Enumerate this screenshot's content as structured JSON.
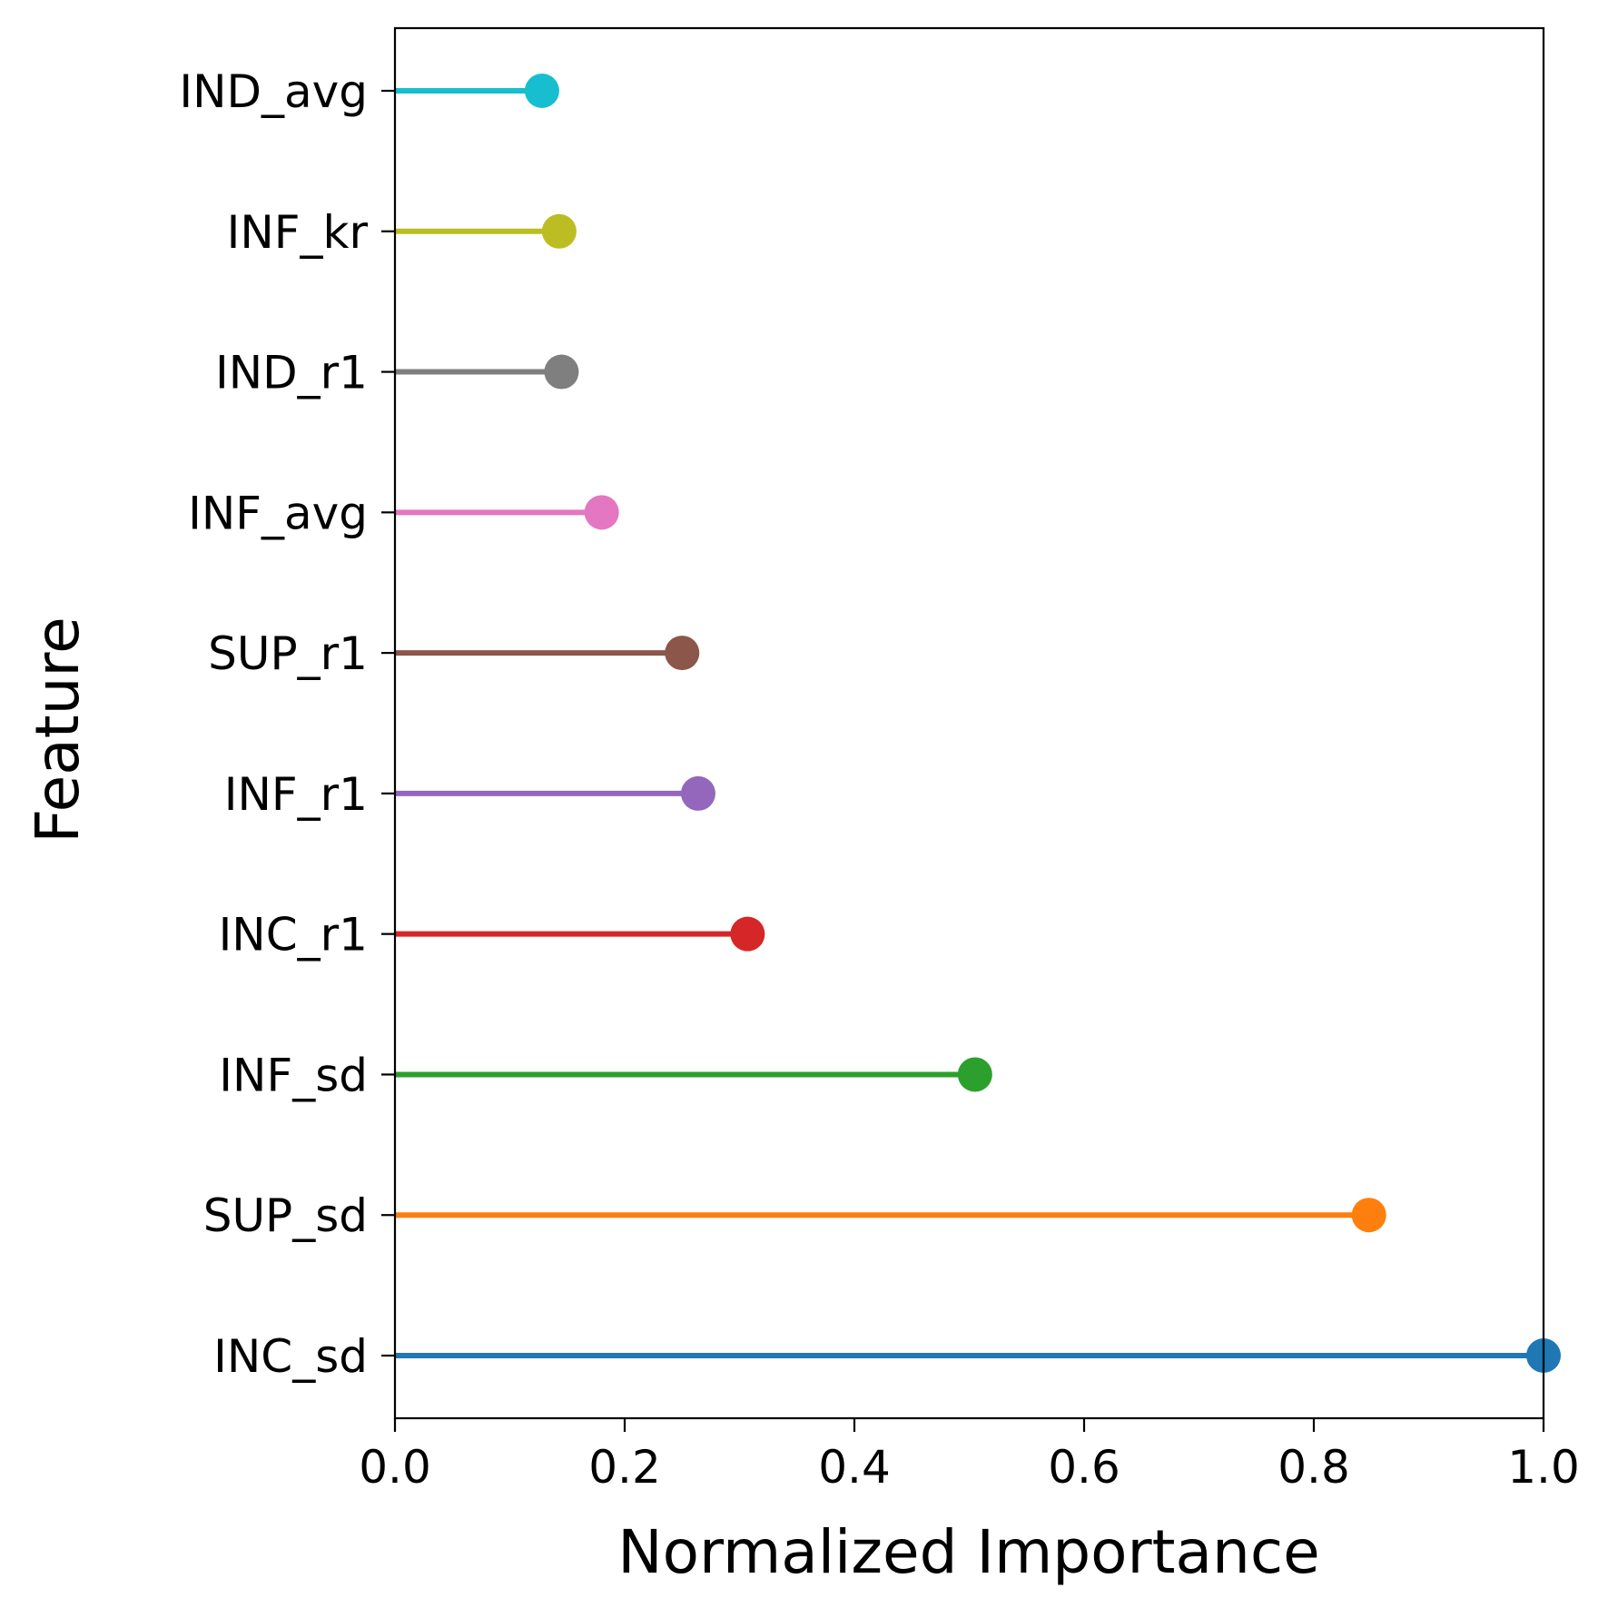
{
  "chart_data": {
    "type": "lollipop",
    "title": "",
    "xlabel": "Normalized Importance",
    "ylabel": "Feature",
    "xlim": [
      0.0,
      1.0
    ],
    "x_ticks": [
      "0.0",
      "0.2",
      "0.4",
      "0.6",
      "0.8",
      "1.0"
    ],
    "x_tick_values": [
      0.0,
      0.2,
      0.4,
      0.6,
      0.8,
      1.0
    ],
    "grid": false,
    "legend": "none",
    "categories": [
      "INC_sd",
      "SUP_sd",
      "INF_sd",
      "INC_r1",
      "INF_r1",
      "SUP_r1",
      "INF_avg",
      "IND_r1",
      "INF_kr",
      "IND_avg"
    ],
    "values": [
      1.0,
      0.848,
      0.505,
      0.307,
      0.264,
      0.25,
      0.18,
      0.145,
      0.143,
      0.128
    ],
    "colors": [
      "#1f77b4",
      "#ff7f0e",
      "#2ca02c",
      "#d62728",
      "#9467bd",
      "#8c564b",
      "#e377c2",
      "#7f7f7f",
      "#bcbd22",
      "#17becf"
    ]
  }
}
